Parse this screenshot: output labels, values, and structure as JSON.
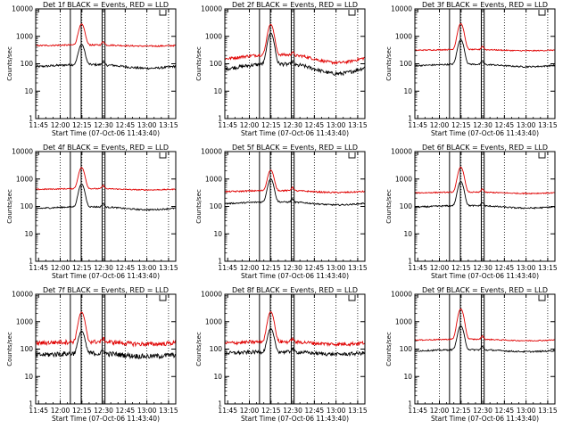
{
  "figure": {
    "x_tick_labels": [
      "11:45",
      "12:00",
      "12:15",
      "12:30",
      "12:45",
      "13:00",
      "13:15"
    ],
    "y_tick_labels": [
      "1",
      "10",
      "100",
      "1000",
      "10000"
    ],
    "ylabel": "Counts/sec",
    "xlabel": "Start Time (07-Oct-06 11:43:40)",
    "colors": {
      "events": "#000000",
      "lld": "#e00000",
      "frame": "#000000"
    },
    "corner_glyph": "box-open-top"
  },
  "chart_data": [
    {
      "type": "line",
      "title": "Det 1f BLACK = Events, RED = LLD",
      "xlabel": "Start Time (07-Oct-06 11:43:40)",
      "ylabel": "Counts/sec",
      "x_range_min": [
        -2,
        95
      ],
      "ylim": [
        1,
        10000
      ],
      "yscale": "log",
      "x_ticks_min": [
        0,
        15,
        30,
        45,
        60,
        75,
        90
      ],
      "x_tick_labels": [
        "11:45",
        "12:00",
        "12:15",
        "12:30",
        "12:45",
        "13:00",
        "13:15"
      ],
      "dotted_gridlines_min": [
        15,
        30,
        45,
        60,
        75,
        90
      ],
      "vertical_markers_min": [
        22,
        29.5,
        44,
        46
      ],
      "series": [
        {
          "name": "Events",
          "color": "#000000",
          "base": 85,
          "wave": 0.15,
          "peak": 500,
          "noise": 0.03
        },
        {
          "name": "LLD",
          "color": "#e00000",
          "base": 470,
          "wave": 0.05,
          "peak": 2800,
          "noise": 0.02
        }
      ]
    },
    {
      "type": "line",
      "title": "Det 2f BLACK = Events, RED = LLD",
      "xlabel": "Start Time (07-Oct-06 11:43:40)",
      "ylabel": "Counts/sec",
      "x_range_min": [
        -2,
        95
      ],
      "ylim": [
        1,
        10000
      ],
      "yscale": "log",
      "x_ticks_min": [
        0,
        15,
        30,
        45,
        60,
        75,
        90
      ],
      "x_tick_labels": [
        "11:45",
        "12:00",
        "12:15",
        "12:30",
        "12:45",
        "13:00",
        "13:15"
      ],
      "dotted_gridlines_min": [
        15,
        30,
        45,
        60,
        75,
        90
      ],
      "vertical_markers_min": [
        22,
        29.5,
        44,
        46
      ],
      "series": [
        {
          "name": "Events",
          "color": "#000000",
          "base": 80,
          "wave": 0.35,
          "peak": 1300,
          "noise": 0.05
        },
        {
          "name": "LLD",
          "color": "#e00000",
          "base": 180,
          "wave": 0.3,
          "peak": 2700,
          "noise": 0.04
        }
      ]
    },
    {
      "type": "line",
      "title": "Det 3f BLACK = Events, RED = LLD",
      "xlabel": "Start Time (07-Oct-06 11:43:40)",
      "ylabel": "Counts/sec",
      "x_range_min": [
        -2,
        95
      ],
      "ylim": [
        1,
        10000
      ],
      "yscale": "log",
      "x_ticks_min": [
        0,
        15,
        30,
        45,
        60,
        75,
        90
      ],
      "x_tick_labels": [
        "11:45",
        "12:00",
        "12:15",
        "12:30",
        "12:45",
        "13:00",
        "13:15"
      ],
      "dotted_gridlines_min": [
        15,
        30,
        45,
        60,
        75,
        90
      ],
      "vertical_markers_min": [
        22,
        29.5,
        44,
        46
      ],
      "series": [
        {
          "name": "Events",
          "color": "#000000",
          "base": 90,
          "wave": 0.1,
          "peak": 750,
          "noise": 0.02
        },
        {
          "name": "LLD",
          "color": "#e00000",
          "base": 320,
          "wave": 0.05,
          "peak": 2900,
          "noise": 0.015
        }
      ]
    },
    {
      "type": "line",
      "title": "Det 4f BLACK = Events, RED = LLD",
      "xlabel": "Start Time (07-Oct-06 11:43:40)",
      "ylabel": "Counts/sec",
      "x_range_min": [
        -2,
        95
      ],
      "ylim": [
        1,
        10000
      ],
      "yscale": "log",
      "x_ticks_min": [
        0,
        15,
        30,
        45,
        60,
        75,
        90
      ],
      "x_tick_labels": [
        "11:45",
        "12:00",
        "12:15",
        "12:30",
        "12:45",
        "13:00",
        "13:15"
      ],
      "dotted_gridlines_min": [
        15,
        30,
        45,
        60,
        75,
        90
      ],
      "vertical_markers_min": [
        22,
        29.5,
        44,
        46
      ],
      "series": [
        {
          "name": "Events",
          "color": "#000000",
          "base": 90,
          "wave": 0.12,
          "peak": 650,
          "noise": 0.02
        },
        {
          "name": "LLD",
          "color": "#e00000",
          "base": 430,
          "wave": 0.05,
          "peak": 2600,
          "noise": 0.015
        }
      ]
    },
    {
      "type": "line",
      "title": "Det 5f BLACK = Events, RED = LLD",
      "xlabel": "Start Time (07-Oct-06 11:43:40)",
      "ylabel": "Counts/sec",
      "x_range_min": [
        -2,
        95
      ],
      "ylim": [
        1,
        10000
      ],
      "yscale": "log",
      "x_ticks_min": [
        0,
        15,
        30,
        45,
        60,
        75,
        90
      ],
      "x_tick_labels": [
        "11:45",
        "12:00",
        "12:15",
        "12:30",
        "12:45",
        "13:00",
        "13:15"
      ],
      "dotted_gridlines_min": [
        15,
        30,
        45,
        60,
        75,
        90
      ],
      "vertical_markers_min": [
        22,
        29.5,
        44,
        46
      ],
      "series": [
        {
          "name": "Events",
          "color": "#000000",
          "base": 135,
          "wave": 0.12,
          "peak": 1000,
          "noise": 0.02
        },
        {
          "name": "LLD",
          "color": "#e00000",
          "base": 360,
          "wave": 0.08,
          "peak": 2100,
          "noise": 0.02
        }
      ]
    },
    {
      "type": "line",
      "title": "Det 6f BLACK = Events, RED = LLD",
      "xlabel": "Start Time (07-Oct-06 11:43:40)",
      "ylabel": "Counts/sec",
      "x_range_min": [
        -2,
        95
      ],
      "ylim": [
        1,
        10000
      ],
      "yscale": "log",
      "x_ticks_min": [
        0,
        15,
        30,
        45,
        60,
        75,
        90
      ],
      "x_tick_labels": [
        "11:45",
        "12:00",
        "12:15",
        "12:30",
        "12:45",
        "13:00",
        "13:15"
      ],
      "dotted_gridlines_min": [
        15,
        30,
        45,
        60,
        75,
        90
      ],
      "vertical_markers_min": [
        22,
        29.5,
        44,
        46
      ],
      "series": [
        {
          "name": "Events",
          "color": "#000000",
          "base": 100,
          "wave": 0.1,
          "peak": 800,
          "noise": 0.02
        },
        {
          "name": "LLD",
          "color": "#e00000",
          "base": 320,
          "wave": 0.05,
          "peak": 2700,
          "noise": 0.015
        }
      ]
    },
    {
      "type": "line",
      "title": "Det 7f BLACK = Events, RED = LLD",
      "xlabel": "Start Time (07-Oct-06 11:43:40)",
      "ylabel": "Counts/sec",
      "x_range_min": [
        -2,
        95
      ],
      "ylim": [
        1,
        10000
      ],
      "yscale": "log",
      "x_ticks_min": [
        0,
        15,
        30,
        45,
        60,
        75,
        90
      ],
      "x_tick_labels": [
        "11:45",
        "12:00",
        "12:15",
        "12:30",
        "12:45",
        "13:00",
        "13:15"
      ],
      "dotted_gridlines_min": [
        15,
        30,
        45,
        60,
        75,
        90
      ],
      "vertical_markers_min": [
        22,
        29.5,
        44,
        46
      ],
      "series": [
        {
          "name": "Events",
          "color": "#000000",
          "base": 65,
          "wave": 0.12,
          "peak": 450,
          "noise": 0.07
        },
        {
          "name": "LLD",
          "color": "#e00000",
          "base": 175,
          "wave": 0.1,
          "peak": 2200,
          "noise": 0.06
        }
      ]
    },
    {
      "type": "line",
      "title": "Det 8f BLACK = Events, RED = LLD",
      "xlabel": "Start Time (07-Oct-06 11:43:40)",
      "ylabel": "Counts/sec",
      "x_range_min": [
        -2,
        95
      ],
      "ylim": [
        1,
        10000
      ],
      "yscale": "log",
      "x_ticks_min": [
        0,
        15,
        30,
        45,
        60,
        75,
        90
      ],
      "x_tick_labels": [
        "11:45",
        "12:00",
        "12:15",
        "12:30",
        "12:45",
        "13:00",
        "13:15"
      ],
      "dotted_gridlines_min": [
        15,
        30,
        45,
        60,
        75,
        90
      ],
      "vertical_markers_min": [
        22,
        29.5,
        44,
        46
      ],
      "series": [
        {
          "name": "Events",
          "color": "#000000",
          "base": 75,
          "wave": 0.1,
          "peak": 550,
          "noise": 0.05
        },
        {
          "name": "LLD",
          "color": "#e00000",
          "base": 175,
          "wave": 0.1,
          "peak": 2300,
          "noise": 0.05
        }
      ]
    },
    {
      "type": "line",
      "title": "Det 9f BLACK = Events, RED = LLD",
      "xlabel": "Start Time (07-Oct-06 11:43:40)",
      "ylabel": "Counts/sec",
      "x_range_min": [
        -2,
        95
      ],
      "ylim": [
        1,
        10000
      ],
      "yscale": "log",
      "x_ticks_min": [
        0,
        15,
        30,
        45,
        60,
        75,
        90
      ],
      "x_tick_labels": [
        "11:45",
        "12:00",
        "12:15",
        "12:30",
        "12:45",
        "13:00",
        "13:15"
      ],
      "dotted_gridlines_min": [
        15,
        30,
        45,
        60,
        75,
        90
      ],
      "vertical_markers_min": [
        22,
        29.5,
        44,
        46
      ],
      "series": [
        {
          "name": "Events",
          "color": "#000000",
          "base": 90,
          "wave": 0.08,
          "peak": 700,
          "noise": 0.02
        },
        {
          "name": "LLD",
          "color": "#e00000",
          "base": 220,
          "wave": 0.06,
          "peak": 2900,
          "noise": 0.015
        }
      ]
    }
  ]
}
